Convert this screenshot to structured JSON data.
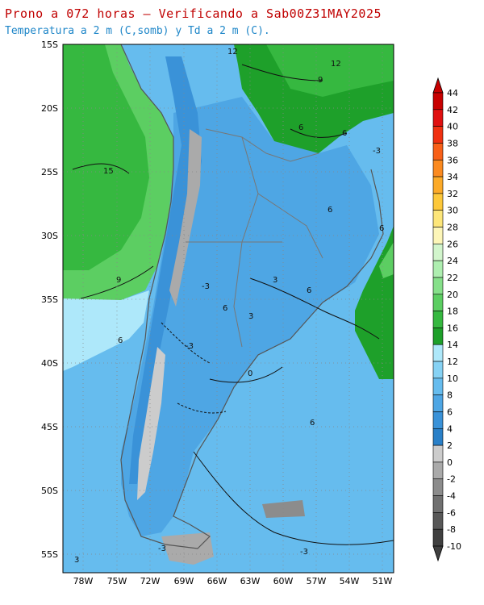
{
  "header": {
    "title": "Prono a 072 horas — Verificando a Sab00Z31MAY2025",
    "subtitle": "Temperatura a 2 m (C,somb) y Td a 2 m (C)."
  },
  "map": {
    "lat_labels": [
      "15S",
      "20S",
      "25S",
      "30S",
      "35S",
      "40S",
      "45S",
      "50S",
      "55S"
    ],
    "lon_labels": [
      "78W",
      "75W",
      "72W",
      "69W",
      "66W",
      "63W",
      "60W",
      "57W",
      "54W",
      "51W"
    ],
    "contour_labels": [
      "12",
      "12",
      "9",
      "6",
      "6",
      "-3",
      "15",
      "6",
      "6",
      "6",
      "9",
      "6",
      "6",
      "-3",
      "0",
      "-3",
      "3",
      "3",
      "6",
      "-3",
      "-3",
      "3"
    ]
  },
  "colorbar": {
    "levels": [
      "44",
      "42",
      "40",
      "38",
      "36",
      "34",
      "32",
      "30",
      "28",
      "26",
      "24",
      "22",
      "20",
      "18",
      "16",
      "14",
      "12",
      "10",
      "8",
      "6",
      "4",
      "2",
      "0",
      "-2",
      "-4",
      "-6",
      "-8",
      "-10"
    ],
    "colors": [
      "#c80000",
      "#e01010",
      "#f03010",
      "#f86018",
      "#fb8a20",
      "#fcaa28",
      "#fdc83a",
      "#fde67a",
      "#fdf6b8",
      "#d2f5cc",
      "#aeeeb0",
      "#86e08a",
      "#5cce62",
      "#36b840",
      "#1ea02a",
      "#aee8fa",
      "#86d2f4",
      "#66bcee",
      "#4ea6e4",
      "#3a92d8",
      "#2a80c8",
      "#cccccc",
      "#aaaaaa",
      "#8c8c8c",
      "#707070",
      "#585858",
      "#404040"
    ]
  }
}
